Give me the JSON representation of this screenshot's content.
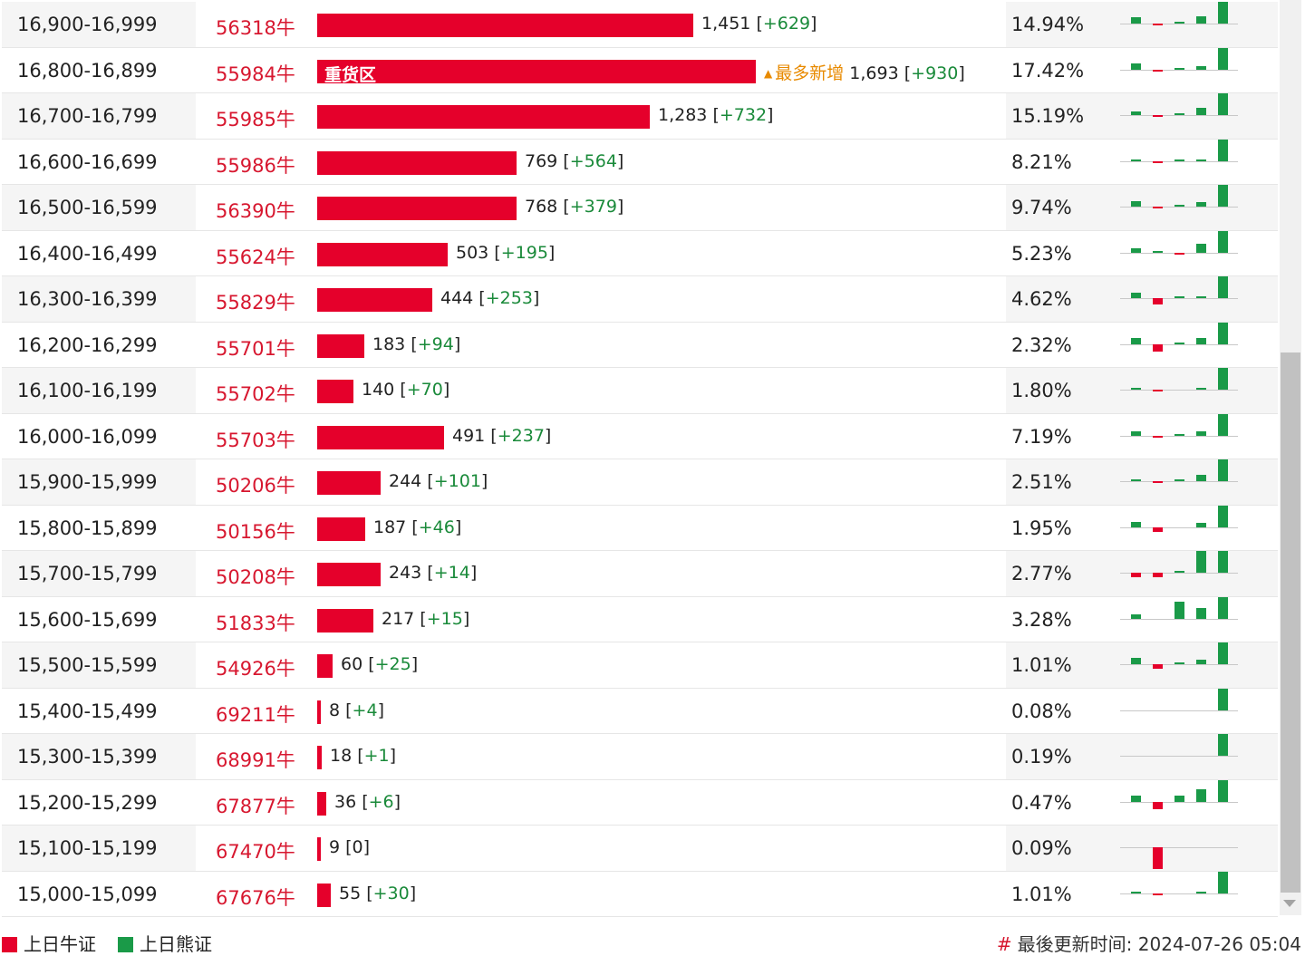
{
  "rows": [
    {
      "range": "16,900-16,999",
      "code": "56318牛",
      "count": "1,451",
      "change": "+629",
      "bar_fraction": 0.857,
      "percent": "14.94%",
      "bar_label": "",
      "tag": "",
      "spark": [
        0.3,
        -0.1,
        0.1,
        0.35,
        1.0
      ]
    },
    {
      "range": "16,800-16,899",
      "code": "55984牛",
      "count": "1,693",
      "change": "+930",
      "bar_fraction": 1.0,
      "percent": "17.42%",
      "bar_label": "重货区",
      "tag": "最多新增",
      "spark": [
        0.3,
        -0.1,
        0.05,
        0.15,
        1.0
      ]
    },
    {
      "range": "16,700-16,799",
      "code": "55985牛",
      "count": "1,283",
      "change": "+732",
      "bar_fraction": 0.758,
      "percent": "15.19%",
      "bar_label": "",
      "tag": "",
      "spark": [
        0.15,
        -0.1,
        0.1,
        0.35,
        1.0
      ]
    },
    {
      "range": "16,600-16,699",
      "code": "55986牛",
      "count": "769",
      "change": "+564",
      "bar_fraction": 0.454,
      "percent": "8.21%",
      "bar_label": "",
      "tag": "",
      "spark": [
        0.1,
        -0.1,
        0.05,
        0.05,
        1.0
      ]
    },
    {
      "range": "16,500-16,599",
      "code": "56390牛",
      "count": "768",
      "change": "+379",
      "bar_fraction": 0.454,
      "percent": "9.74%",
      "bar_label": "",
      "tag": "",
      "spark": [
        0.25,
        -0.05,
        0.1,
        0.2,
        1.0
      ]
    },
    {
      "range": "16,400-16,499",
      "code": "55624牛",
      "count": "503",
      "change": "+195",
      "bar_fraction": 0.297,
      "percent": "5.23%",
      "bar_label": "",
      "tag": "",
      "spark": [
        0.2,
        0.05,
        -0.1,
        0.4,
        1.0
      ]
    },
    {
      "range": "16,300-16,399",
      "code": "55829牛",
      "count": "444",
      "change": "+253",
      "bar_fraction": 0.262,
      "percent": "4.62%",
      "bar_label": "",
      "tag": "",
      "spark": [
        0.25,
        -0.3,
        0.05,
        0.1,
        1.0
      ]
    },
    {
      "range": "16,200-16,299",
      "code": "55701牛",
      "count": "183",
      "change": "+94",
      "bar_fraction": 0.108,
      "percent": "2.32%",
      "bar_label": "",
      "tag": "",
      "spark": [
        0.3,
        -0.35,
        0.05,
        0.3,
        1.0
      ]
    },
    {
      "range": "16,100-16,199",
      "code": "55702牛",
      "count": "140",
      "change": "+70",
      "bar_fraction": 0.083,
      "percent": "1.80%",
      "bar_label": "",
      "tag": "",
      "spark": [
        0.05,
        -0.05,
        0.0,
        0.1,
        1.0
      ]
    },
    {
      "range": "16,000-16,099",
      "code": "55703牛",
      "count": "491",
      "change": "+237",
      "bar_fraction": 0.29,
      "percent": "7.19%",
      "bar_label": "",
      "tag": "",
      "spark": [
        0.2,
        -0.05,
        0.05,
        0.2,
        1.0
      ]
    },
    {
      "range": "15,900-15,999",
      "code": "50206牛",
      "count": "244",
      "change": "+101",
      "bar_fraction": 0.144,
      "percent": "2.51%",
      "bar_label": "",
      "tag": "",
      "spark": [
        0.1,
        -0.05,
        0.1,
        0.3,
        1.0
      ]
    },
    {
      "range": "15,800-15,899",
      "code": "50156牛",
      "count": "187",
      "change": "+46",
      "bar_fraction": 0.11,
      "percent": "1.95%",
      "bar_label": "",
      "tag": "",
      "spark": [
        0.25,
        -0.2,
        0.0,
        0.2,
        1.0
      ]
    },
    {
      "range": "15,700-15,799",
      "code": "50208牛",
      "count": "243",
      "change": "+14",
      "bar_fraction": 0.144,
      "percent": "2.77%",
      "bar_label": "",
      "tag": "",
      "spark": [
        -0.2,
        -0.2,
        0.1,
        1.0,
        1.0
      ]
    },
    {
      "range": "15,600-15,699",
      "code": "51833牛",
      "count": "217",
      "change": "+15",
      "bar_fraction": 0.128,
      "percent": "3.28%",
      "bar_label": "",
      "tag": "",
      "spark": [
        0.2,
        0.0,
        0.8,
        0.5,
        1.0
      ]
    },
    {
      "range": "15,500-15,599",
      "code": "54926牛",
      "count": "60",
      "change": "+25",
      "bar_fraction": 0.035,
      "percent": "1.01%",
      "bar_label": "",
      "tag": "",
      "spark": [
        0.3,
        -0.2,
        0.1,
        0.2,
        1.0
      ]
    },
    {
      "range": "15,400-15,499",
      "code": "69211牛",
      "count": "8",
      "change": "+4",
      "bar_fraction": 0.005,
      "percent": "0.08%",
      "bar_label": "",
      "tag": "",
      "spark": [
        0,
        0,
        0,
        0,
        1.0
      ]
    },
    {
      "range": "15,300-15,399",
      "code": "68991牛",
      "count": "18",
      "change": "+1",
      "bar_fraction": 0.011,
      "percent": "0.19%",
      "bar_label": "",
      "tag": "",
      "spark": [
        0,
        0,
        0,
        0,
        1.0
      ]
    },
    {
      "range": "15,200-15,299",
      "code": "67877牛",
      "count": "36",
      "change": "+6",
      "bar_fraction": 0.021,
      "percent": "0.47%",
      "bar_label": "",
      "tag": "",
      "spark": [
        0.3,
        -0.35,
        0.3,
        0.6,
        1.0
      ]
    },
    {
      "range": "15,100-15,199",
      "code": "67470牛",
      "count": "9",
      "change": "0",
      "bar_fraction": 0.005,
      "percent": "0.09%",
      "bar_label": "",
      "tag": "",
      "spark": [
        0,
        -1.0,
        0,
        0,
        0
      ]
    },
    {
      "range": "15,000-15,099",
      "code": "67676牛",
      "count": "55",
      "change": "+30",
      "bar_fraction": 0.032,
      "percent": "1.01%",
      "bar_label": "",
      "tag": "",
      "spark": [
        0.1,
        -0.1,
        0.0,
        0.1,
        1.0
      ]
    }
  ],
  "legend": {
    "bull_label": "上日牛证",
    "bear_label": "上日熊证",
    "bull_color": "#e5002b",
    "bear_color": "#1a9a48"
  },
  "updated": {
    "symbol": "#",
    "text": "最後更新时间: 2024-07-26 05:04"
  }
}
